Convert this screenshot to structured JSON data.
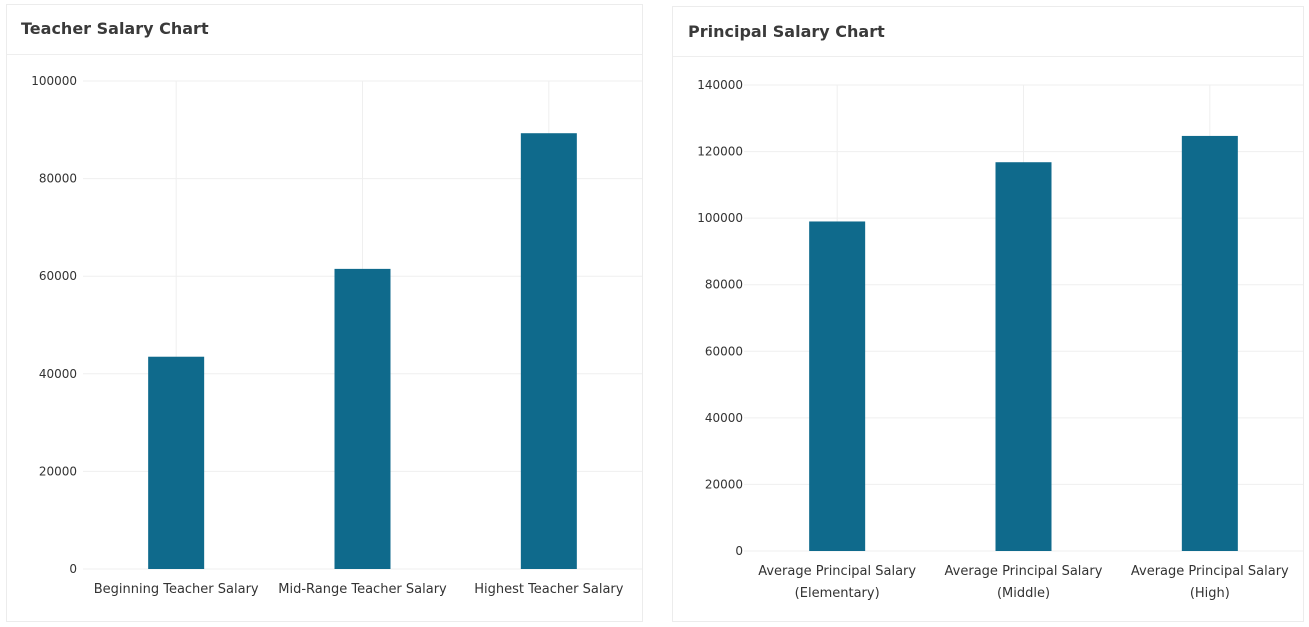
{
  "chart_data": [
    {
      "type": "bar",
      "title": "Teacher Salary Chart",
      "categories": [
        [
          "Beginning Teacher Salary"
        ],
        [
          "Mid-Range Teacher Salary"
        ],
        [
          "Highest Teacher Salary"
        ]
      ],
      "values": [
        43500,
        61500,
        89300
      ],
      "ylim": [
        0,
        100000
      ],
      "yticks": [
        0,
        20000,
        40000,
        60000,
        80000,
        100000
      ],
      "grid": true,
      "color": "#0f6a8c"
    },
    {
      "type": "bar",
      "title": "Principal Salary Chart",
      "categories": [
        [
          "Average Principal Salary",
          "(Elementary)"
        ],
        [
          "Average Principal Salary",
          "(Middle)"
        ],
        [
          "Average Principal Salary",
          "(High)"
        ]
      ],
      "values": [
        99000,
        116800,
        124700
      ],
      "ylim": [
        0,
        140000
      ],
      "yticks": [
        0,
        20000,
        40000,
        60000,
        80000,
        100000,
        120000,
        140000
      ],
      "grid": true,
      "color": "#0f6a8c"
    }
  ]
}
